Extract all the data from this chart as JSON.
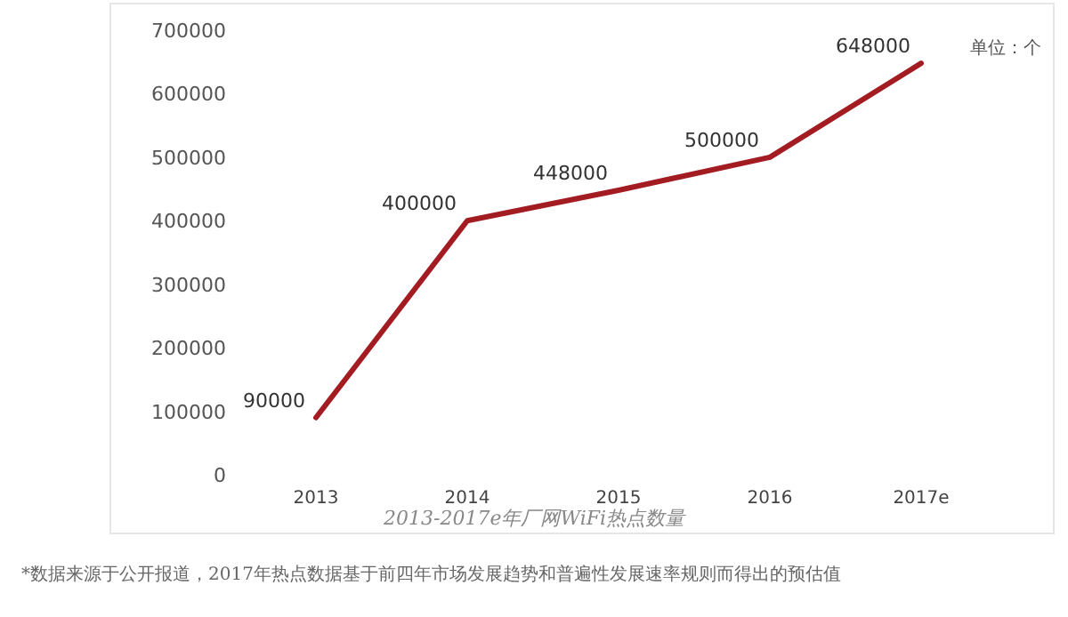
{
  "chart_data": {
    "type": "line",
    "title": "2013-2017e年厂网WiFi热点数量",
    "categories": [
      "2013",
      "2014",
      "2015",
      "2016",
      "2017e"
    ],
    "series": [
      {
        "color": "#a31c22",
        "values": [
          90000,
          400000,
          448000,
          500000,
          648000
        ]
      }
    ],
    "ylim": [
      0,
      700000
    ],
    "yticks": [
      0,
      100000,
      200000,
      300000,
      400000,
      500000,
      600000,
      700000
    ],
    "data_labels": true,
    "grid": false,
    "marker": "none",
    "line_style": "solid",
    "annotations": [
      "单位：个",
      "*数据来源于公开报道，2017年热点数据基于前四年市场发展趋势和普遍性发展速率规则而得出的预估值"
    ]
  }
}
